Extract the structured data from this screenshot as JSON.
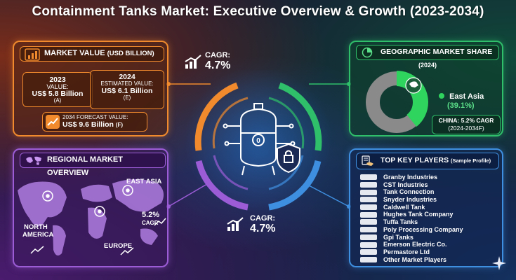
{
  "title": "Containment Tanks Market: Executive Overview & Growth (2023-2034)",
  "market_value": {
    "heading": "MARKET VALUE",
    "heading_unit": "(USD BILLION)",
    "icon": "bar-chart-icon",
    "y2023": {
      "year": "2023",
      "label": "VALUE:",
      "value": "US$ 5.8 Billion",
      "tag": "(A)"
    },
    "y2024": {
      "year": "2024",
      "label": "ESTIMATED VALUE:",
      "value": "US$ 6.1 Billion",
      "tag": "(E)"
    },
    "y2034": {
      "label": "2034 FORECAST VALUE:",
      "value": "US$ 9.6 Billion",
      "tag": "(F)"
    }
  },
  "cagr_top": {
    "label": "CAGR:",
    "value": "4.7%"
  },
  "cagr_bottom": {
    "label": "CAGR:",
    "value": "4.7%"
  },
  "geographic": {
    "heading": "GEOGRAPHIC MARKET SHARE",
    "year": "(2024)",
    "region": "East Asia",
    "share_label": "(39.1%)",
    "share": 39.1,
    "china_line1": "CHINA: 5.2% CAGR",
    "china_line2": "(2024-2034F)",
    "colors": {
      "share": "#2fd45e",
      "rest": "#8a8a8a"
    }
  },
  "regional": {
    "heading": "REGIONAL MARKET OVERVIEW",
    "east_asia": "EAST ASIA",
    "ea_cagr": "5.2%",
    "ea_cagr_label": "CAGR",
    "north_america_1": "NORTH",
    "north_america_2": "AMERICA",
    "europe": "EUROPE"
  },
  "key_players": {
    "heading": "TOP KEY PLAYERS",
    "heading_note": "(Sample Profile)",
    "items": [
      "Granby Industries",
      "CST Industries",
      "Tank Connection",
      "Snyder Industries",
      "Caldwell Tank",
      "Hughes Tank Company",
      "Tuffa Tanks",
      "Poly Processing Company",
      "Gpi Tanks",
      "Emerson Electric Co.",
      "Permastore Ltd",
      "Other Market Players"
    ]
  },
  "colors": {
    "orange": "#f08a2c",
    "purple": "#9b5cd6",
    "green": "#2fbf6a",
    "blue": "#3f8fe0"
  }
}
